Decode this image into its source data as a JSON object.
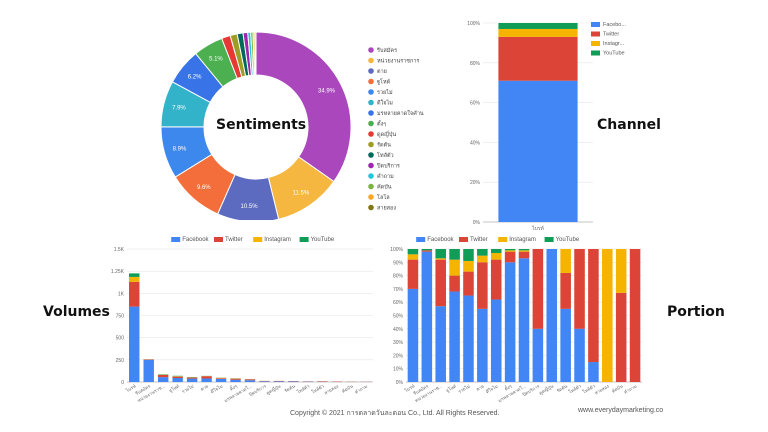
{
  "labels": {
    "sentiments": "Sentiments",
    "channel": "Channel",
    "volumes": "Volumes",
    "portion": "Portion"
  },
  "footer": {
    "copyright": "Copyright © 2021 การตลาดวันละตอน Co., Ltd. All Rights Reserved.",
    "website": "www.everydaymarketing.co"
  },
  "colors": {
    "facebook": "#4285f4",
    "twitter": "#db4437",
    "instagram": "#f4b400",
    "youtube": "#0f9d58"
  },
  "chart_data": [
    {
      "type": "pie",
      "donut": true,
      "legend_position": "right",
      "slices": [
        {
          "label": "รีบสมัคร",
          "value": 34.9,
          "color": "#ab47bc",
          "shown_label": "34.9%"
        },
        {
          "label": "หน่วยงานราชการ",
          "value": 11.5,
          "color": "#f6b740",
          "shown_label": "11.5%"
        },
        {
          "label": "ตาย",
          "value": 10.5,
          "color": "#5c6bc0",
          "shown_label": "10.5%"
        },
        {
          "label": "ฐูโหด์",
          "value": 9.6,
          "color": "#f36e3a",
          "shown_label": "9.6%"
        },
        {
          "label": "รวยไม่",
          "value": 8.9,
          "color": "#3d88ec",
          "shown_label": "8.9%"
        },
        {
          "label": "ดีใจไม",
          "value": 7.9,
          "color": "#33b3c9",
          "shown_label": "7.9%"
        },
        {
          "label": "มรหลายคาดใจคำน",
          "value": 6.2,
          "color": "#3874e8",
          "shown_label": "6.2%"
        },
        {
          "label": "ตั้งๆ",
          "value": 5.1,
          "color": "#4caf50",
          "shown_label": "5.1%"
        },
        {
          "label": "ดูดญี่ปุ่น",
          "value": 1.5,
          "color": "#e53935",
          "shown_label": ""
        },
        {
          "label": "รัดตัน",
          "value": 1.2,
          "color": "#9e9d24",
          "shown_label": ""
        },
        {
          "label": "โทลัตัว",
          "value": 1.0,
          "color": "#00695c",
          "shown_label": ""
        },
        {
          "label": "ปิดบริการ",
          "value": 0.8,
          "color": "#9c27b0",
          "shown_label": ""
        },
        {
          "label": "คำถาม",
          "value": 0.5,
          "color": "#26c6da",
          "shown_label": ""
        },
        {
          "label": "คัดบัน",
          "value": 0.4,
          "color": "#7cb342",
          "shown_label": ""
        },
        {
          "label": "โลโล",
          "value": 0.3,
          "color": "#f9a825",
          "shown_label": ""
        },
        {
          "label": "สายสอง",
          "value": 0.2,
          "color": "#827717",
          "shown_label": ""
        }
      ]
    },
    {
      "type": "bar",
      "stacked": true,
      "percent": true,
      "categories": [
        "ไบรท์"
      ],
      "ylim": [
        0,
        100
      ],
      "yticks": [
        "0%",
        "20%",
        "40%",
        "60%",
        "80%",
        "100%"
      ],
      "legend_position": "right",
      "series": [
        {
          "name": "Facebo...",
          "values": [
            71
          ]
        },
        {
          "name": "Twitter",
          "values": [
            22
          ]
        },
        {
          "name": "Instagr...",
          "values": [
            4
          ]
        },
        {
          "name": "YouTube",
          "values": [
            3
          ]
        }
      ]
    },
    {
      "type": "bar",
      "stacked": true,
      "legend_position": "top",
      "ylim": [
        0,
        1500
      ],
      "yticks": [
        "0",
        "250",
        "500",
        "750",
        "1K",
        "1.25K",
        "1.5K"
      ],
      "categories": [
        "ไบรท์",
        "รีบสมัคร",
        "หน่วยงานราช...",
        "ฐูโหด์",
        "รวยไม่",
        "ตาย",
        "ดีใจไม",
        "ตั้งๆ",
        "มรหลายคาดใ...",
        "ปิดบริการ",
        "ดูดญี่ปุ่น",
        "รัดตัน",
        "โทลัตัว",
        "โทลัตัว",
        "สายสอง",
        "คัดบัน",
        "คำถาม"
      ],
      "series": [
        {
          "name": "Facebook",
          "values": [
            850,
            250,
            55,
            45,
            38,
            40,
            35,
            25,
            20,
            8,
            8,
            6,
            4,
            3,
            2,
            2,
            1
          ]
        },
        {
          "name": "Twitter",
          "values": [
            280,
            5,
            25,
            15,
            12,
            25,
            8,
            12,
            10,
            4,
            4,
            4,
            3,
            5,
            4,
            2,
            2
          ]
        },
        {
          "name": "Instagram",
          "values": [
            55,
            1,
            3,
            5,
            3,
            2,
            4,
            3,
            1,
            1,
            1,
            0,
            0,
            1,
            0,
            1,
            0
          ]
        },
        {
          "name": "YouTube",
          "values": [
            40,
            1,
            4,
            5,
            3,
            2,
            2,
            2,
            1,
            0,
            0,
            0,
            0,
            0,
            0,
            0,
            0
          ]
        }
      ]
    },
    {
      "type": "bar",
      "stacked": true,
      "percent": true,
      "legend_position": "top",
      "ylim": [
        0,
        100
      ],
      "yticks": [
        "0%",
        "10%",
        "20%",
        "30%",
        "40%",
        "50%",
        "60%",
        "70%",
        "80%",
        "90%",
        "100%"
      ],
      "categories": [
        "ไบรท์",
        "รีบสมัคร",
        "หน่วยงานราช...",
        "ฐูโหด์",
        "รวยไม่",
        "ตาย",
        "ดีใจไม",
        "ตั้งๆ",
        "มรหลายคาดใ...",
        "ปิดบริการ",
        "ดูดญี่ปุ่น",
        "รัดตัน",
        "โทลัตัว",
        "โทลัตัว",
        "สายสอง",
        "คัดบัน",
        "คำถาม"
      ],
      "series": [
        {
          "name": "Facebook",
          "values": [
            70,
            98,
            57,
            68,
            65,
            55,
            62,
            90,
            93,
            40,
            100,
            55,
            40,
            15,
            0,
            0,
            0
          ]
        },
        {
          "name": "Twitter",
          "values": [
            22,
            1,
            35,
            12,
            18,
            35,
            30,
            8,
            5,
            60,
            0,
            27,
            60,
            85,
            0,
            67,
            100
          ]
        },
        {
          "name": "Instagram",
          "values": [
            4,
            0,
            1,
            12,
            8,
            5,
            5,
            1,
            1,
            0,
            0,
            18,
            0,
            0,
            100,
            33,
            0
          ]
        },
        {
          "name": "YouTube",
          "values": [
            4,
            1,
            7,
            8,
            9,
            5,
            3,
            1,
            1,
            0,
            0,
            0,
            0,
            0,
            0,
            0,
            0
          ]
        }
      ]
    }
  ]
}
